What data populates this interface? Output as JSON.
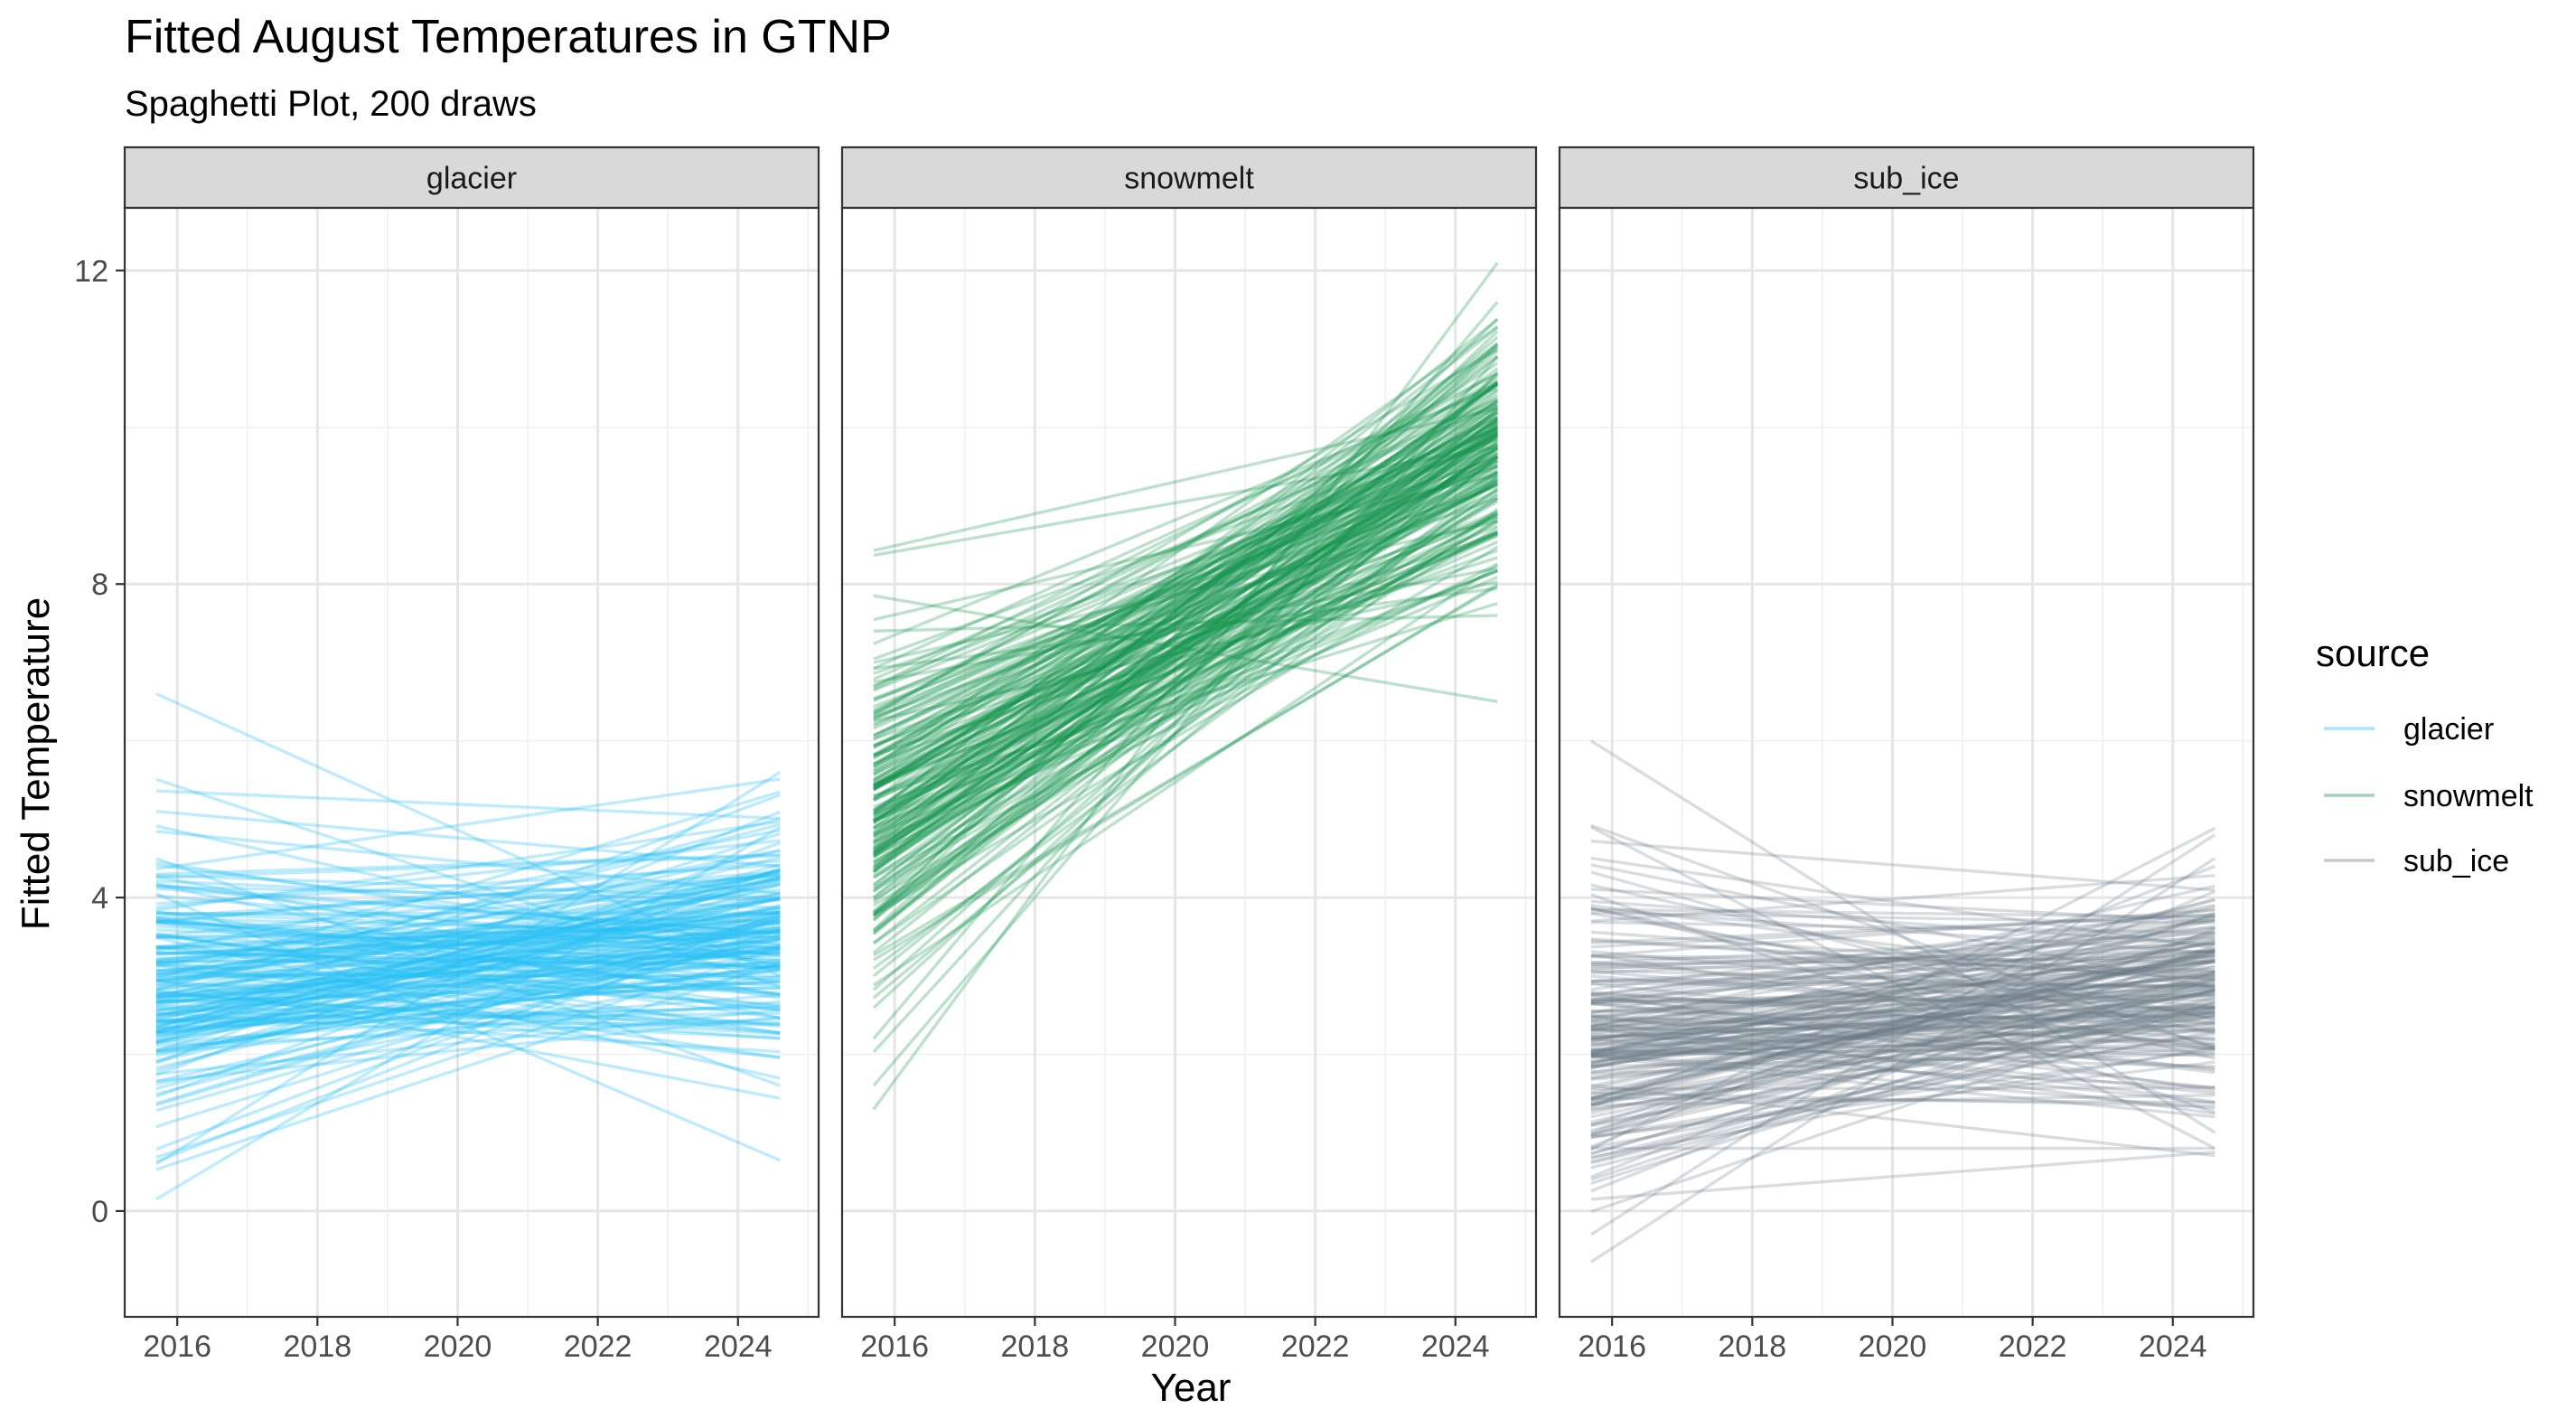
{
  "chart_data": {
    "type": "line",
    "title": "Fitted August Temperatures in GTNP",
    "subtitle": "Spaghetti Plot, 200 draws",
    "xlabel": "Year",
    "ylabel": "Fitted Temperature",
    "xlim": [
      2015.25,
      2025.15
    ],
    "ylim": [
      -1.35,
      12.8
    ],
    "x_ticks": [
      2016,
      2018,
      2020,
      2022,
      2024
    ],
    "x_tick_labels": [
      "2016",
      "2018",
      "2020",
      "2022",
      "2024"
    ],
    "y_ticks": [
      0,
      4,
      8,
      12
    ],
    "y_tick_labels": [
      "0",
      "4",
      "8",
      "12"
    ],
    "grid": true,
    "draws": 200,
    "line_x_range": [
      2015.7,
      2024.6
    ],
    "legend": {
      "title": "source",
      "placement": "right",
      "entries": [
        "glacier",
        "snowmelt",
        "sub_ice"
      ]
    },
    "facets": [
      {
        "name": "glacier",
        "strip_label": "glacier",
        "color": "#29c0f5",
        "opacity": 0.3,
        "summary": {
          "start_mean": 2.85,
          "start_sd": 1.05,
          "end_mean": 3.45,
          "end_sd": 0.9
        },
        "highlighted_lines": [
          {
            "x": [
              2015.7,
              2024.6
            ],
            "y": [
              6.6,
              3.0
            ]
          },
          {
            "x": [
              2015.7,
              2024.6
            ],
            "y": [
              0.15,
              4.9
            ]
          },
          {
            "x": [
              2015.7,
              2024.6
            ],
            "y": [
              0.6,
              5.6
            ]
          },
          {
            "x": [
              2015.7,
              2024.6
            ],
            "y": [
              5.1,
              4.4
            ]
          },
          {
            "x": [
              2015.7,
              2024.6
            ],
            "y": [
              4.5,
              1.6
            ]
          }
        ]
      },
      {
        "name": "snowmelt",
        "strip_label": "snowmelt",
        "color": "#13924a",
        "opacity": 0.28,
        "summary": {
          "start_mean": 5.1,
          "start_sd": 1.15,
          "end_mean": 9.8,
          "end_sd": 0.9
        },
        "highlighted_lines": [
          {
            "x": [
              2015.7,
              2024.6
            ],
            "y": [
              7.85,
              6.5
            ]
          },
          {
            "x": [
              2015.7,
              2024.6
            ],
            "y": [
              7.4,
              7.6
            ]
          },
          {
            "x": [
              2015.7,
              2024.6
            ],
            "y": [
              1.3,
              12.1
            ]
          },
          {
            "x": [
              2015.7,
              2024.6
            ],
            "y": [
              2.2,
              11.6
            ]
          },
          {
            "x": [
              2015.7,
              2024.6
            ],
            "y": [
              1.6,
              10.9
            ]
          }
        ]
      },
      {
        "name": "sub_ice",
        "strip_label": "sub_ice",
        "color": "#6e7b89",
        "opacity": 0.26,
        "summary": {
          "start_mean": 2.15,
          "start_sd": 1.2,
          "end_mean": 2.75,
          "end_sd": 0.8
        },
        "highlighted_lines": [
          {
            "x": [
              2015.7,
              2024.6
            ],
            "y": [
              6.0,
              1.0
            ]
          },
          {
            "x": [
              2015.7,
              2024.6
            ],
            "y": [
              -0.65,
              4.5
            ]
          },
          {
            "x": [
              2015.7,
              2024.6
            ],
            "y": [
              -0.3,
              4.8
            ]
          },
          {
            "x": [
              2015.7,
              2024.6
            ],
            "y": [
              4.9,
              0.8
            ]
          },
          {
            "x": [
              2015.7,
              2024.6
            ],
            "y": [
              0.8,
              0.8
            ]
          },
          {
            "x": [
              2015.7,
              2024.6
            ],
            "y": [
              0.15,
              0.75
            ]
          }
        ]
      }
    ]
  }
}
